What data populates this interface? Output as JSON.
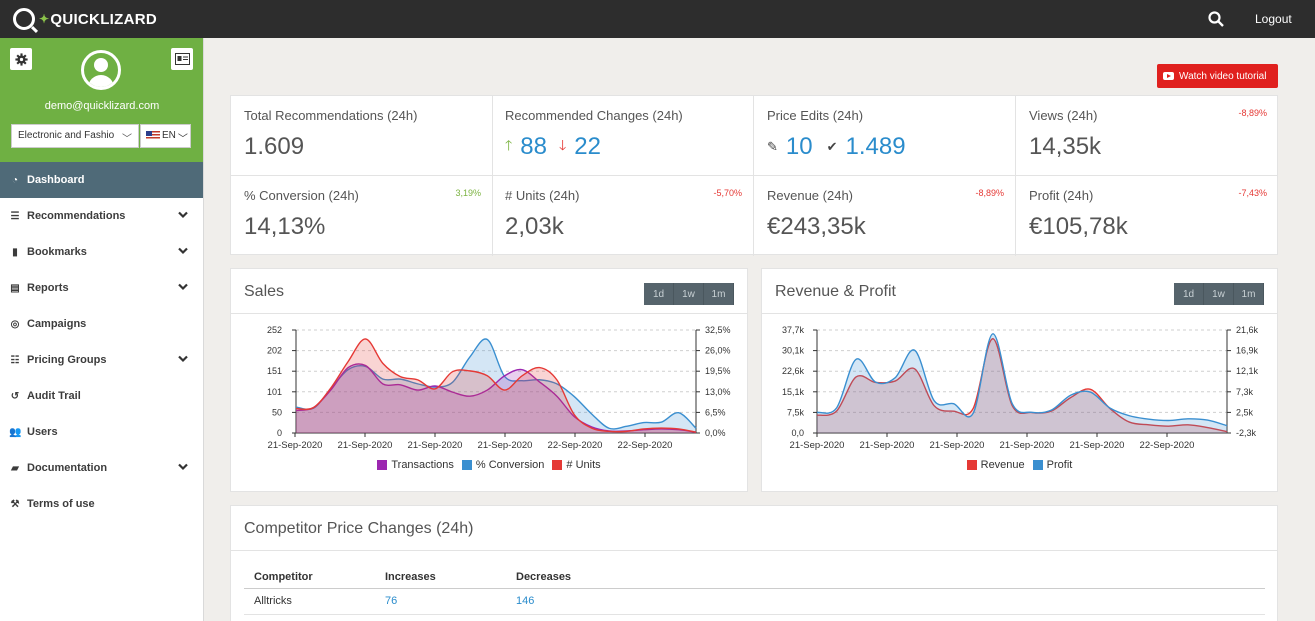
{
  "app": {
    "logo_text": "QUICKLIZARD",
    "logout": "Logout"
  },
  "colors": {
    "accent_green": "#6fb043",
    "topbar": "#2d2d2d",
    "link_blue": "#2a8ccc",
    "active_nav": "#4f6a78",
    "tutorial_red": "#e0201e"
  },
  "sidebar": {
    "email": "demo@quicklizard.com",
    "category_select": "Electronic and Fashio",
    "language": "EN",
    "items": [
      {
        "label": "Dashboard",
        "icon": "dashboard-icon",
        "active": true,
        "expandable": false
      },
      {
        "label": "Recommendations",
        "icon": "list-icon",
        "active": false,
        "expandable": true
      },
      {
        "label": "Bookmarks",
        "icon": "bookmark-icon",
        "active": false,
        "expandable": true
      },
      {
        "label": "Reports",
        "icon": "report-icon",
        "active": false,
        "expandable": true
      },
      {
        "label": "Campaigns",
        "icon": "target-icon",
        "active": false,
        "expandable": false
      },
      {
        "label": "Pricing Groups",
        "icon": "sliders-icon",
        "active": false,
        "expandable": true
      },
      {
        "label": "Audit Trail",
        "icon": "history-icon",
        "active": false,
        "expandable": false
      },
      {
        "label": "Users",
        "icon": "users-icon",
        "active": false,
        "expandable": false
      },
      {
        "label": "Documentation",
        "icon": "book-icon",
        "active": false,
        "expandable": true
      },
      {
        "label": "Terms of use",
        "icon": "gavel-icon",
        "active": false,
        "expandable": false
      }
    ]
  },
  "tutorial_button": "Watch video tutorial",
  "stats": {
    "total_recommendations": {
      "label": "Total Recommendations (24h)",
      "value": "1.609"
    },
    "recommended_changes": {
      "label": "Recommended Changes (24h)",
      "up": "88",
      "down": "22"
    },
    "price_edits": {
      "label": "Price Edits (24h)",
      "edited": "10",
      "approved": "1.489"
    },
    "views": {
      "label": "Views (24h)",
      "value": "14,35k",
      "change": "-8,89%"
    },
    "conversion": {
      "label": "% Conversion (24h)",
      "value": "14,13%",
      "change": "3,19%"
    },
    "units": {
      "label": "# Units (24h)",
      "value": "2,03k",
      "change": "-5,70%"
    },
    "revenue": {
      "label": "Revenue (24h)",
      "value": "€243,35k",
      "change": "-8,89%"
    },
    "profit": {
      "label": "Profit (24h)",
      "value": "€105,78k",
      "change": "-7,43%"
    }
  },
  "ranges": [
    "1d",
    "1w",
    "1m"
  ],
  "chart_data": [
    {
      "type": "area",
      "title": "Sales",
      "x_ticks": [
        "21-Sep-2020",
        "21-Sep-2020",
        "21-Sep-2020",
        "21-Sep-2020",
        "22-Sep-2020",
        "22-Sep-2020"
      ],
      "y_left_ticks": [
        "252",
        "202",
        "151",
        "101",
        "50",
        "0"
      ],
      "y_right_ticks": [
        "32,5%",
        "26,0%",
        "19,5%",
        "13,0%",
        "6,5%",
        "0,0%"
      ],
      "ylim": [
        0,
        252
      ],
      "y_right_lim": [
        0,
        32.5
      ],
      "series": [
        {
          "name": "Transactions",
          "color": "#9c27b0",
          "axis": "left",
          "values": [
            55,
            62,
            105,
            160,
            165,
            120,
            118,
            105,
            115,
            100,
            90,
            105,
            140,
            155,
            125,
            90,
            40,
            15,
            5,
            5,
            8,
            10,
            8,
            2
          ]
        },
        {
          "name": "% Conversion",
          "color": "#3a8fd0",
          "axis": "right",
          "values": [
            8.2,
            7.8,
            14,
            20,
            21,
            17,
            17,
            15.5,
            14.5,
            16,
            24,
            29.5,
            17.8,
            16.5,
            16.8,
            15.5,
            11.5,
            6,
            1.5,
            2.1,
            3.3,
            3.4,
            6.4,
            1.5
          ]
        },
        {
          "name": "# Units",
          "color": "#e53935",
          "axis": "left",
          "values": [
            60,
            62,
            110,
            175,
            230,
            170,
            138,
            130,
            108,
            150,
            152,
            140,
            105,
            140,
            160,
            130,
            45,
            12,
            4,
            4,
            10,
            12,
            10,
            2
          ]
        }
      ]
    },
    {
      "type": "area",
      "title": "Revenue & Profit",
      "x_ticks": [
        "21-Sep-2020",
        "21-Sep-2020",
        "21-Sep-2020",
        "21-Sep-2020",
        "21-Sep-2020",
        "22-Sep-2020"
      ],
      "y_left_ticks": [
        "37,7k",
        "30,1k",
        "22,6k",
        "15,1k",
        "7,5k",
        "0,0"
      ],
      "y_right_ticks": [
        "21,6k",
        "16,9k",
        "12,1k",
        "7,3k",
        "2,5k",
        "-2,3k"
      ],
      "ylim": [
        0,
        37.7
      ],
      "y_right_lim": [
        -2.3,
        21.6
      ],
      "series": [
        {
          "name": "Revenue",
          "color": "#e53935",
          "axis": "left",
          "values": [
            6.5,
            8,
            20.5,
            18.5,
            19,
            23.5,
            10,
            8,
            9,
            34.5,
            10,
            7.5,
            8,
            13,
            16,
            9,
            4,
            3,
            2.5,
            3,
            2,
            0.5
          ]
        },
        {
          "name": "Profit",
          "color": "#3a8fd0",
          "axis": "right",
          "values": [
            2.5,
            3.5,
            14.8,
            9.5,
            10.5,
            16.9,
            5.2,
            4.5,
            2.3,
            20.7,
            4.5,
            2.5,
            3,
            6.5,
            7.2,
            3.5,
            1.7,
            0.9,
            0.6,
            1,
            0.7,
            -0.6
          ]
        }
      ]
    }
  ],
  "competitor": {
    "title": "Competitor Price Changes (24h)",
    "headers": [
      "Competitor",
      "Increases",
      "Decreases"
    ],
    "rows": [
      [
        "Alltricks",
        "76",
        "146"
      ]
    ]
  }
}
